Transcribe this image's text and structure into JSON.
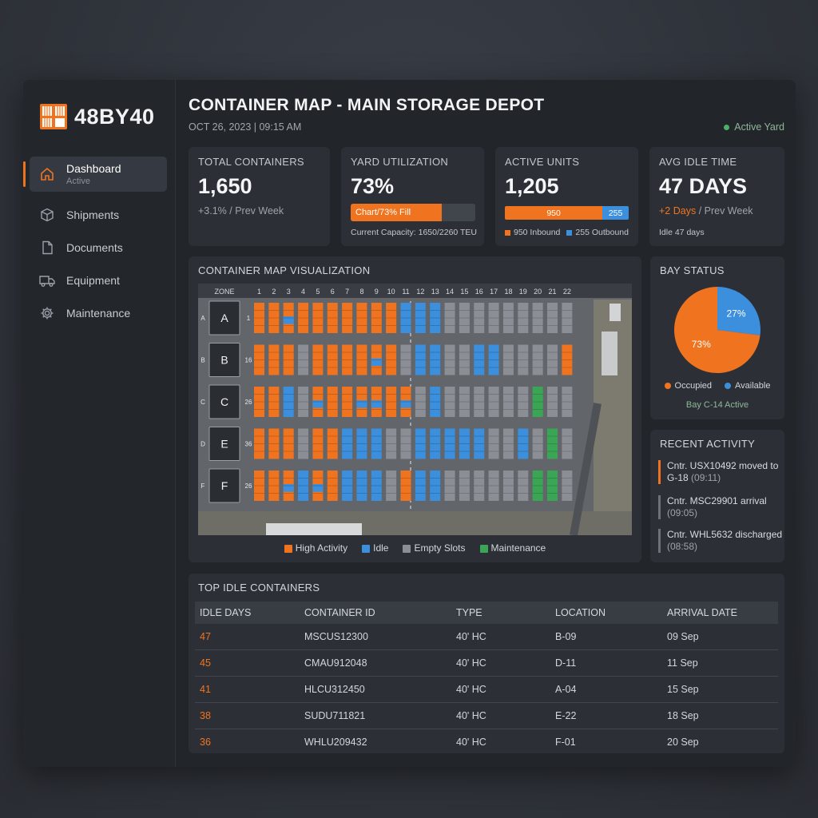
{
  "brand": {
    "name": "48BY40",
    "logo_icon": "container-stack-icon",
    "accent": "#f0741f"
  },
  "sidebar": {
    "items": [
      {
        "label": "Dashboard",
        "sub": "Active",
        "icon": "home-icon"
      },
      {
        "label": "Shipments",
        "icon": "box-icon"
      },
      {
        "label": "Documents",
        "icon": "document-icon"
      },
      {
        "label": "Equipment",
        "icon": "truck-icon"
      },
      {
        "label": "Maintenance",
        "icon": "gear-icon"
      }
    ]
  },
  "header": {
    "title": "CONTAINER MAP - MAIN STORAGE DEPOT",
    "date": "OCT 26, 2023 | 09:15 AM",
    "status": "Active Yard"
  },
  "kpis": {
    "total": {
      "label": "TOTAL CONTAINERS",
      "value": "1,650",
      "sub": "+3.1% / Prev Week"
    },
    "utilization": {
      "label": "YARD UTILIZATION",
      "value": "73%",
      "bar_label": "Chart/73% Fill",
      "fill_fraction": 0.73,
      "foot": "Current Capacity: 1650/2260 TEU"
    },
    "active": {
      "label": "ACTIVE UNITS",
      "value": "1,205",
      "inbound": 950,
      "outbound": 255,
      "inbound_label": "950 Inbound",
      "outbound_label": "255 Outbound"
    },
    "idle": {
      "label": "AVG IDLE TIME",
      "value": "47 DAYS",
      "sub_accent": "+2 Days",
      "sub_rest": " / Prev Week",
      "foot": "Idle 47 days"
    }
  },
  "map": {
    "title": "CONTAINER MAP VISUALIZATION",
    "zone_header": "ZONE",
    "columns": [
      "1",
      "2",
      "3",
      "4",
      "5",
      "6",
      "7",
      "8",
      "9",
      "10",
      "11",
      "12",
      "13",
      "14",
      "15",
      "16",
      "17",
      "18",
      "19",
      "20",
      "21",
      "22"
    ],
    "zones": [
      {
        "letter": "A",
        "side": "A",
        "row_no": "1"
      },
      {
        "letter": "B",
        "side": "B",
        "row_no": "16"
      },
      {
        "letter": "C",
        "side": "C",
        "row_no": "26"
      },
      {
        "letter": "E",
        "side": "D",
        "row_no": "36"
      },
      {
        "letter": "F",
        "side": "F",
        "row_no": "26"
      }
    ],
    "grid": [
      [
        "H",
        "H",
        "HI",
        "H",
        "H",
        "H",
        "H",
        "H",
        "H",
        "H",
        "I",
        "I",
        "I",
        "E",
        "E",
        "E",
        "E",
        "E",
        "E",
        "E",
        "E",
        "E"
      ],
      [
        "H",
        "H",
        "H",
        "E",
        "H",
        "H",
        "H",
        "H",
        "HI",
        "H",
        "E",
        "I",
        "I",
        "E",
        "E",
        "I",
        "I",
        "E",
        "E",
        "E",
        "E",
        "H"
      ],
      [
        "H",
        "H",
        "I",
        "E",
        "HI",
        "H",
        "H",
        "HI",
        "HI",
        "H",
        "HI",
        "E",
        "I",
        "E",
        "E",
        "E",
        "E",
        "E",
        "E",
        "M",
        "E",
        "E"
      ],
      [
        "H",
        "H",
        "H",
        "E",
        "H",
        "H",
        "I",
        "I",
        "I",
        "E",
        "E",
        "I",
        "I",
        "I",
        "I",
        "I",
        "E",
        "E",
        "I",
        "E",
        "M",
        "E"
      ],
      [
        "H",
        "H",
        "HI",
        "I",
        "HI",
        "H",
        "I",
        "I",
        "I",
        "E",
        "H",
        "I",
        "I",
        "E",
        "E",
        "E",
        "E",
        "E",
        "E",
        "M",
        "M",
        "E"
      ]
    ],
    "colors": {
      "H": "#f0741f",
      "I": "#3b8fdc",
      "E": "#8b8f95",
      "M": "#3aa655"
    },
    "legend": [
      {
        "label": "High Activity",
        "color": "#f0741f"
      },
      {
        "label": "Idle",
        "color": "#3b8fdc"
      },
      {
        "label": "Empty Slots",
        "color": "#8b8f95"
      },
      {
        "label": "Maintenance",
        "color": "#3aa655"
      }
    ]
  },
  "bay": {
    "title": "BAY STATUS",
    "occupied_pct": 73,
    "available_pct": 27,
    "occupied_label": "73%",
    "available_label": "27%",
    "legend_occupied": "Occupied",
    "legend_available": "Available",
    "foot": "Bay C-14 Active"
  },
  "activity": {
    "title": "RECENT ACTIVITY",
    "items": [
      {
        "text": "Cntr. USX10492 moved to G-18",
        "time": "(09:11)"
      },
      {
        "text": "Cntr. MSC29901 arrival",
        "time": "(09:05)"
      },
      {
        "text": "Cntr. WHL5632 discharged",
        "time": "(08:58)"
      }
    ]
  },
  "idle_table": {
    "title": "TOP IDLE CONTAINERS",
    "columns": [
      "IDLE DAYS",
      "CONTAINER ID",
      "TYPE",
      "LOCATION",
      "ARRIVAL DATE"
    ],
    "rows": [
      [
        "47",
        "MSCUS12300",
        "40' HC",
        "B-09",
        "09 Sep"
      ],
      [
        "45",
        "CMAU912048",
        "40' HC",
        "D-11",
        "11 Sep"
      ],
      [
        "41",
        "HLCU312450",
        "40' HC",
        "A-04",
        "15 Sep"
      ],
      [
        "38",
        "SUDU711821",
        "40' HC",
        "E-22",
        "18 Sep"
      ],
      [
        "36",
        "WHLU209432",
        "40' HC",
        "F-01",
        "20 Sep"
      ]
    ]
  }
}
